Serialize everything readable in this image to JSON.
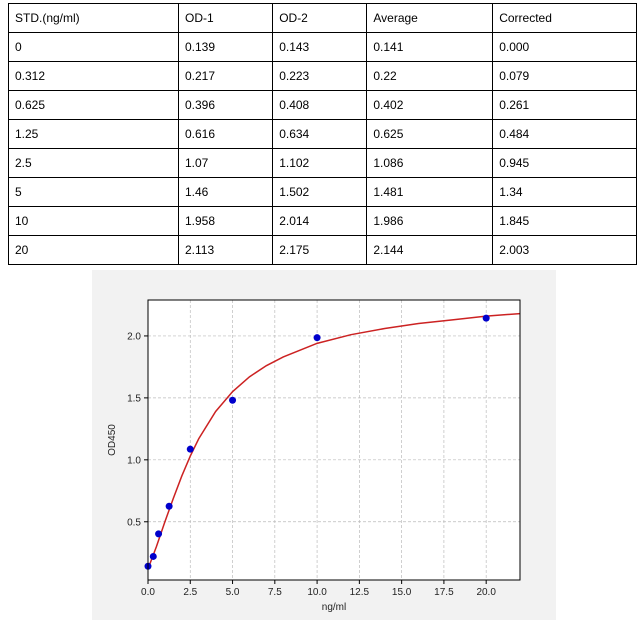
{
  "table": {
    "header": [
      "STD.(ng/ml)",
      "OD-1",
      "OD-2",
      "Average",
      "Corrected"
    ],
    "rows": [
      [
        "0",
        "0.139",
        "0.143",
        "0.141",
        "0.000"
      ],
      [
        "0.312",
        "0.217",
        "0.223",
        "0.22",
        "0.079"
      ],
      [
        "0.625",
        "0.396",
        "0.408",
        "0.402",
        "0.261"
      ],
      [
        "1.25",
        "0.616",
        "0.634",
        "0.625",
        "0.484"
      ],
      [
        "2.5",
        "1.07",
        "1.102",
        "1.086",
        "0.945"
      ],
      [
        "5",
        "1.46",
        "1.502",
        "1.481",
        "1.34"
      ],
      [
        "10",
        "1.958",
        "2.014",
        "1.986",
        "1.845"
      ],
      [
        "20",
        "2.113",
        "2.175",
        "2.144",
        "2.003"
      ]
    ]
  },
  "chart_data": {
    "type": "scatter",
    "x_label": "ng/ml",
    "y_label": "OD450",
    "xlim": [
      0,
      22
    ],
    "ylim": [
      0.03,
      2.29
    ],
    "grid": true,
    "xticks": [
      {
        "value": 0,
        "label": "0.0"
      },
      {
        "value": 2.5,
        "label": "2.5"
      },
      {
        "value": 5,
        "label": "5.0"
      },
      {
        "value": 7.5,
        "label": "7.5"
      },
      {
        "value": 10,
        "label": "10.0"
      },
      {
        "value": 12.5,
        "label": "12.5"
      },
      {
        "value": 15,
        "label": "15.0"
      },
      {
        "value": 17.5,
        "label": "17.5"
      },
      {
        "value": 20,
        "label": "20.0"
      }
    ],
    "yticks": [
      {
        "value": 0.5,
        "label": "0.5"
      },
      {
        "value": 1,
        "label": "1.0"
      },
      {
        "value": 1.5,
        "label": "1.5"
      },
      {
        "value": 2,
        "label": "2.0"
      }
    ],
    "series": [
      {
        "style": "line",
        "color": "#cc2222",
        "x": [
          0,
          0.5,
          1,
          1.5,
          2,
          2.5,
          3,
          4,
          5,
          6,
          7,
          8,
          10,
          12,
          14,
          16,
          18,
          20,
          22
        ],
        "values": [
          0.12,
          0.3,
          0.5,
          0.69,
          0.87,
          1.03,
          1.17,
          1.39,
          1.55,
          1.67,
          1.76,
          1.83,
          1.94,
          2.01,
          2.06,
          2.1,
          2.13,
          2.16,
          2.18
        ]
      },
      {
        "style": "marker",
        "color": "#0000cc",
        "x": [
          0,
          0.312,
          0.625,
          1.25,
          2.5,
          5,
          10,
          20
        ],
        "values": [
          0.141,
          0.22,
          0.402,
          0.625,
          1.086,
          1.481,
          1.986,
          2.144
        ]
      }
    ]
  }
}
